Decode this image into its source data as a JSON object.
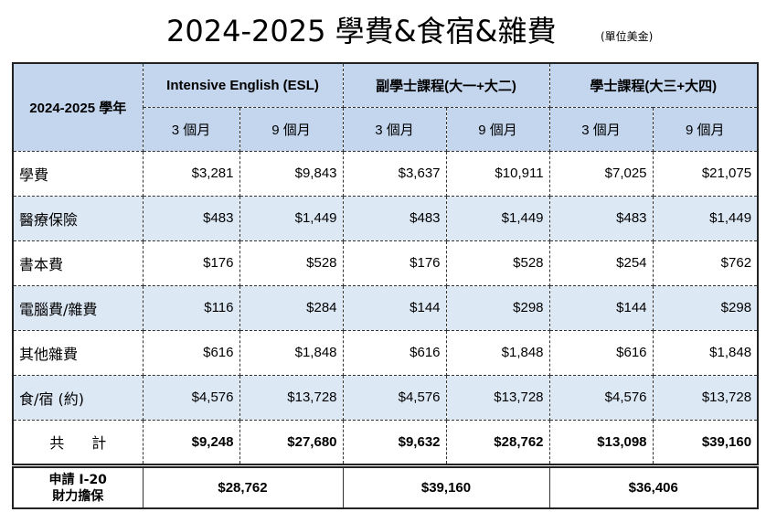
{
  "title": "2024-2025 學費&食宿&雜費",
  "unit": "(單位美金)",
  "corner_label": "2024-2025 學年",
  "programs": [
    {
      "name": "Intensive English (ESL)",
      "periods": [
        "3 個月",
        "9 個月"
      ]
    },
    {
      "name": "副學士課程(大一+大二)",
      "periods": [
        "3 個月",
        "9 個月"
      ]
    },
    {
      "name": "學士課程(大三+大四)",
      "periods": [
        "3 個月",
        "9 個月"
      ]
    }
  ],
  "rows": [
    {
      "label": "學費",
      "values": [
        "$3,281",
        "$9,843",
        "$3,637",
        "$10,911",
        "$7,025",
        "$21,075"
      ]
    },
    {
      "label": "醫療保險",
      "values": [
        "$483",
        "$1,449",
        "$483",
        "$1,449",
        "$483",
        "$1,449"
      ]
    },
    {
      "label": "書本費",
      "values": [
        "$176",
        "$528",
        "$176",
        "$528",
        "$254",
        "$762"
      ]
    },
    {
      "label": "電腦費/雜費",
      "values": [
        "$116",
        "$284",
        "$144",
        "$298",
        "$144",
        "$298"
      ]
    },
    {
      "label": "其他雜費",
      "values": [
        "$616",
        "$1,848",
        "$616",
        "$1,848",
        "$616",
        "$1,848"
      ]
    },
    {
      "label": "食/宿 (約)",
      "values": [
        "$4,576",
        "$13,728",
        "$4,576",
        "$13,728",
        "$4,576",
        "$13,728"
      ]
    }
  ],
  "total": {
    "label": "共計",
    "values": [
      "$9,248",
      "$27,680",
      "$9,632",
      "$28,762",
      "$13,098",
      "$39,160"
    ]
  },
  "i20": {
    "label_line1": "申請 I-20",
    "label_line2": "財力擔保",
    "values": [
      "$28,762",
      "$39,160",
      "$36,406"
    ]
  }
}
